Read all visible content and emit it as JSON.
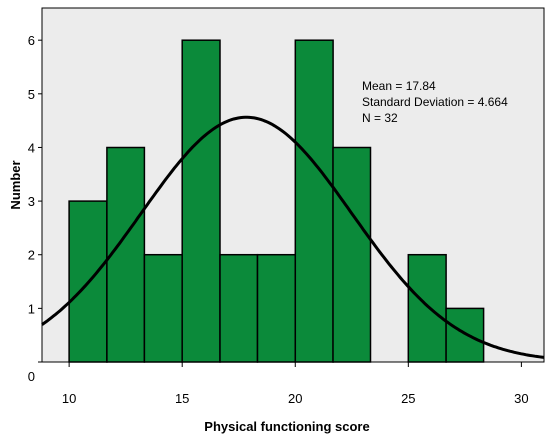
{
  "chart_data": {
    "type": "bar",
    "subtype": "histogram-with-normal-curve",
    "xlabel": "Physical functioning score",
    "ylabel": "Number",
    "xlim": [
      8.8,
      31.0
    ],
    "ylim": [
      0,
      6.6
    ],
    "xticks": [
      10,
      15,
      20,
      25,
      30
    ],
    "xtick_labels": [
      "10",
      "15",
      "20",
      "25",
      "30"
    ],
    "yticks": [
      0,
      1,
      2,
      3,
      4,
      5,
      6
    ],
    "ytick_labels": [
      "0",
      "1",
      "2",
      "3",
      "4",
      "5",
      "6"
    ],
    "bins": [
      {
        "start": 10.0,
        "end": 11.67,
        "count": 3
      },
      {
        "start": 11.67,
        "end": 13.33,
        "count": 4
      },
      {
        "start": 13.33,
        "end": 15.0,
        "count": 2
      },
      {
        "start": 15.0,
        "end": 16.67,
        "count": 6
      },
      {
        "start": 16.67,
        "end": 18.33,
        "count": 2
      },
      {
        "start": 18.33,
        "end": 20.0,
        "count": 2
      },
      {
        "start": 20.0,
        "end": 21.67,
        "count": 6
      },
      {
        "start": 21.67,
        "end": 23.33,
        "count": 4
      },
      {
        "start": 23.33,
        "end": 25.0,
        "count": 0
      },
      {
        "start": 25.0,
        "end": 26.67,
        "count": 2
      },
      {
        "start": 26.67,
        "end": 28.33,
        "count": 1
      }
    ],
    "normal_curve": {
      "mean": 17.84,
      "sd": 4.664,
      "n": 32,
      "bin_width": 1.667
    },
    "annotations": [
      "Mean = 17.84",
      "Standard Deviation = 4.664",
      "N = 32"
    ],
    "colors": {
      "bar_fill": "#0b8a3a",
      "bar_stroke": "#000000",
      "plot_background": "#ececec",
      "curve": "#000000"
    },
    "grid": false,
    "legend": "none"
  }
}
